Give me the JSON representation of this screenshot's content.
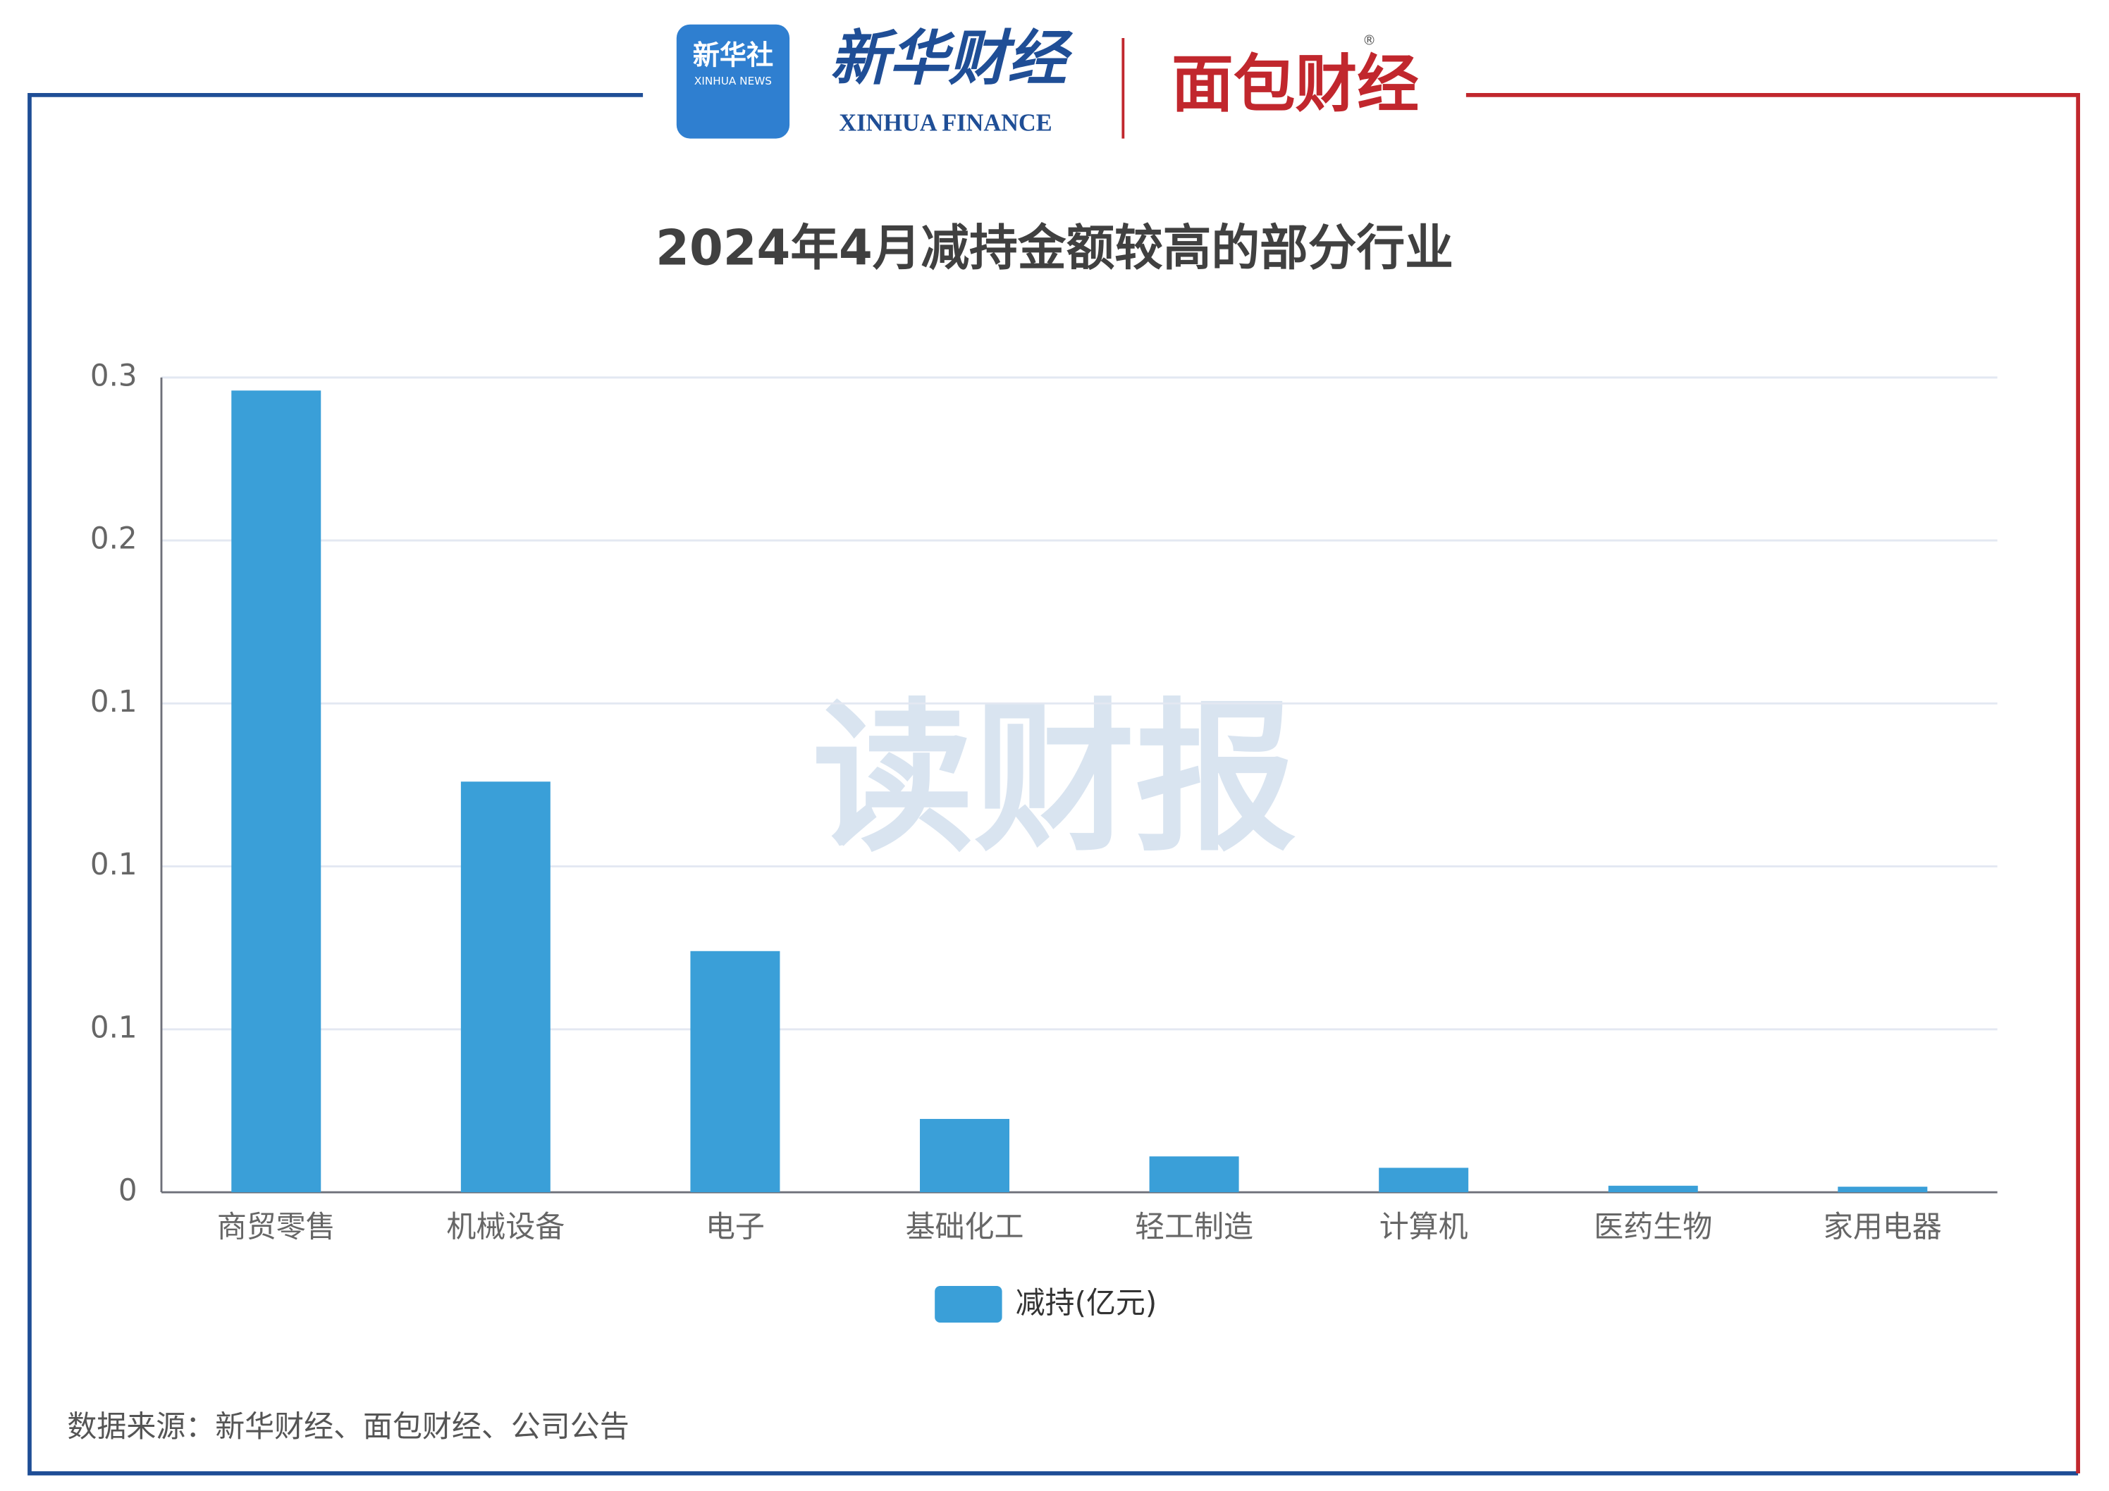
{
  "header": {
    "logo_xinhua_cn": "新华社",
    "logo_xinhua_en": "XINHUA NEWS",
    "logo_finance_cn": "新华财经",
    "logo_finance_en": "XINHUA FINANCE",
    "logo_mianbao": "面包财经",
    "registered": "®"
  },
  "watermark": "读财报",
  "chart_data": {
    "type": "bar",
    "title": "2024年4月减持金额较高的部分行业",
    "categories": [
      "商贸零售",
      "机械设备",
      "电子",
      "基础化工",
      "轻工制造",
      "计算机",
      "医药生物",
      "家用电器"
    ],
    "series": [
      {
        "name": "减持(亿元)",
        "color": "#3a9fd8",
        "values": [
          0.246,
          0.126,
          0.074,
          0.0225,
          0.011,
          0.0075,
          0.002,
          0.0017
        ]
      }
    ],
    "ylim": [
      0,
      0.25
    ],
    "yticks": [
      0,
      {
        "value": 0.05,
        "label": "0.1"
      },
      0.1,
      {
        "value": 0.15,
        "label": "0.1"
      },
      0.2,
      {
        "value": 0.25,
        "label": "0.3"
      }
    ],
    "grid": true,
    "legend": "bottom"
  },
  "source": "数据来源：新华财经、面包财经、公司公告"
}
